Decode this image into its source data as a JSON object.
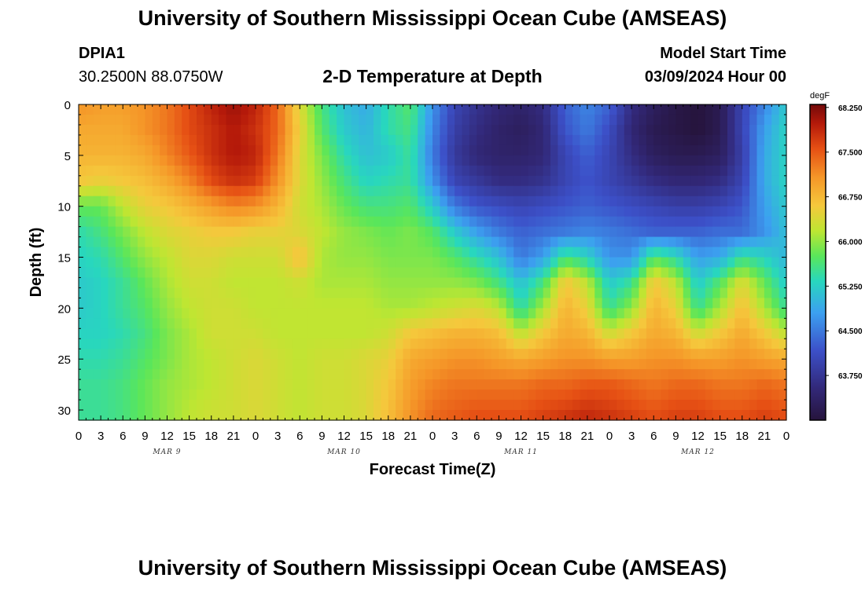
{
  "header": {
    "title": "University of Southern Mississippi Ocean Cube (AMSEAS)",
    "station_id": "DPIA1",
    "coordinates": "30.2500N  88.0750W",
    "model_start_label": "Model Start Time",
    "model_start_value": "03/09/2024 Hour 00"
  },
  "footer": {
    "title": "University of Southern Mississippi Ocean Cube (AMSEAS)"
  },
  "chart_data": {
    "type": "heatmap",
    "title": "2-D Temperature at Depth",
    "xlabel": "Forecast Time(Z)",
    "ylabel": "Depth (ft)",
    "x_hours_range": [
      0,
      96
    ],
    "ylim": [
      0,
      31
    ],
    "y_inverted": true,
    "x_tick_labels": [
      "0",
      "3",
      "6",
      "9",
      "12",
      "15",
      "18",
      "21",
      "0",
      "3",
      "6",
      "9",
      "12",
      "15",
      "18",
      "21",
      "0",
      "3",
      "6",
      "9",
      "12",
      "15",
      "18",
      "21",
      "0",
      "3",
      "6",
      "9",
      "12",
      "15",
      "18",
      "21",
      "0"
    ],
    "y_ticks": [
      0,
      5,
      10,
      15,
      20,
      25,
      30
    ],
    "y_tick_labels": [
      "0",
      "5",
      "10",
      "15",
      "20",
      "25",
      "30"
    ],
    "dates": [
      {
        "label": "MAR 9",
        "hour": 12
      },
      {
        "label": "MAR 10",
        "hour": 36
      },
      {
        "label": "MAR 11",
        "hour": 60
      },
      {
        "label": "MAR 12",
        "hour": 84
      }
    ],
    "colorbar": {
      "unit": "degF",
      "min": 63.0,
      "max": 68.3,
      "labels": [
        "68.250",
        "67.500",
        "66.750",
        "66.000",
        "65.250",
        "64.500",
        "63.750"
      ],
      "values": [
        68.25,
        67.5,
        66.75,
        66.0,
        65.25,
        64.5,
        63.75
      ]
    },
    "depth_levels_ft": [
      0,
      2.5,
      5,
      7.5,
      10,
      12.5,
      15,
      17.5,
      20,
      22.5,
      25,
      27.5,
      31
    ],
    "time_hours": [
      0,
      3,
      6,
      9,
      12,
      15,
      18,
      21,
      24,
      27,
      30,
      33,
      36,
      39,
      42,
      45,
      48,
      51,
      54,
      57,
      60,
      63,
      66,
      69,
      72,
      75,
      78,
      81,
      84,
      87,
      90,
      93,
      96
    ],
    "temperature_degF": [
      [
        67.1,
        67.0,
        67.0,
        67.1,
        67.3,
        67.6,
        67.9,
        68.1,
        67.9,
        67.4,
        66.4,
        65.6,
        65.1,
        64.9,
        65.4,
        65.7,
        64.7,
        64.0,
        63.7,
        63.5,
        63.4,
        63.6,
        64.3,
        64.6,
        64.3,
        63.6,
        63.3,
        63.1,
        63.0,
        63.2,
        64.0,
        64.6,
        65.2
      ],
      [
        66.9,
        66.9,
        66.9,
        67.1,
        67.3,
        67.6,
        67.8,
        68.0,
        67.8,
        67.4,
        66.5,
        65.7,
        65.2,
        65.0,
        65.4,
        65.6,
        64.6,
        63.9,
        63.6,
        63.4,
        63.3,
        63.5,
        64.2,
        64.5,
        64.1,
        63.5,
        63.2,
        63.1,
        63.0,
        63.2,
        64.0,
        64.8,
        65.3
      ],
      [
        66.8,
        66.8,
        66.8,
        66.9,
        67.2,
        67.5,
        67.8,
        68.0,
        67.9,
        67.3,
        66.4,
        65.9,
        65.4,
        65.1,
        65.2,
        65.5,
        64.5,
        63.8,
        63.5,
        63.4,
        63.4,
        63.5,
        64.0,
        64.3,
        64.0,
        63.6,
        63.3,
        63.2,
        63.2,
        63.3,
        63.9,
        64.9,
        65.3
      ],
      [
        66.6,
        66.5,
        66.6,
        66.7,
        66.9,
        67.2,
        67.6,
        67.8,
        67.7,
        67.1,
        66.4,
        66.0,
        65.6,
        65.3,
        65.4,
        65.5,
        64.7,
        64.0,
        63.8,
        63.6,
        63.6,
        63.7,
        64.0,
        64.2,
        64.0,
        63.8,
        63.6,
        63.5,
        63.5,
        63.6,
        64.0,
        64.9,
        65.3
      ],
      [
        65.8,
        65.8,
        66.2,
        66.5,
        66.6,
        66.8,
        67.0,
        67.2,
        67.1,
        66.8,
        66.3,
        66.1,
        65.8,
        65.6,
        65.6,
        65.7,
        65.2,
        64.5,
        64.2,
        64.1,
        64.0,
        64.1,
        64.2,
        64.3,
        64.2,
        64.1,
        64.0,
        63.9,
        63.9,
        64.0,
        64.2,
        64.8,
        65.2
      ],
      [
        65.4,
        65.6,
        65.9,
        66.2,
        66.4,
        66.5,
        66.6,
        66.6,
        66.5,
        66.5,
        66.4,
        66.2,
        66.0,
        65.9,
        65.8,
        65.9,
        65.7,
        65.2,
        64.8,
        64.5,
        64.3,
        64.4,
        64.5,
        64.6,
        64.5,
        64.4,
        64.3,
        64.3,
        64.3,
        64.4,
        64.4,
        64.7,
        65.1
      ],
      [
        65.3,
        65.4,
        65.7,
        66.0,
        66.2,
        66.4,
        66.4,
        66.3,
        66.3,
        66.3,
        66.7,
        66.1,
        66.0,
        66.0,
        65.9,
        65.9,
        65.9,
        65.7,
        65.4,
        65.1,
        64.5,
        64.8,
        65.6,
        65.3,
        64.7,
        64.7,
        65.7,
        65.4,
        64.8,
        64.9,
        65.5,
        65.3,
        65.0
      ],
      [
        65.2,
        65.3,
        65.5,
        65.8,
        66.1,
        66.3,
        66.3,
        66.2,
        66.2,
        66.2,
        66.3,
        66.1,
        66.1,
        66.1,
        66.0,
        66.0,
        66.0,
        66.0,
        65.9,
        65.6,
        65.1,
        65.6,
        66.6,
        66.2,
        65.2,
        65.5,
        66.6,
        66.2,
        65.2,
        65.7,
        66.4,
        65.8,
        65.2
      ],
      [
        65.2,
        65.3,
        65.5,
        65.7,
        66.0,
        66.2,
        66.3,
        66.3,
        66.2,
        66.2,
        66.2,
        66.2,
        66.2,
        66.2,
        66.1,
        66.1,
        66.2,
        66.3,
        66.4,
        66.2,
        65.4,
        66.1,
        66.8,
        66.5,
        65.5,
        66.0,
        66.8,
        66.5,
        65.5,
        66.1,
        66.7,
        66.1,
        65.5
      ],
      [
        65.3,
        65.3,
        65.4,
        65.6,
        65.9,
        66.1,
        66.3,
        66.3,
        66.3,
        66.2,
        66.2,
        66.2,
        66.2,
        66.2,
        66.3,
        66.6,
        66.7,
        66.8,
        66.8,
        66.7,
        66.2,
        66.6,
        66.9,
        66.8,
        66.3,
        66.6,
        66.9,
        66.8,
        66.3,
        66.6,
        66.9,
        66.6,
        66.2
      ],
      [
        65.4,
        65.4,
        65.5,
        65.7,
        65.9,
        66.1,
        66.2,
        66.3,
        66.4,
        66.3,
        66.2,
        66.3,
        66.3,
        66.4,
        66.5,
        66.9,
        67.0,
        67.1,
        67.1,
        67.0,
        66.9,
        67.0,
        67.1,
        67.1,
        67.0,
        67.0,
        67.1,
        67.1,
        67.0,
        67.0,
        67.1,
        67.0,
        66.9
      ],
      [
        65.5,
        65.5,
        65.6,
        65.8,
        66.0,
        66.1,
        66.2,
        66.3,
        66.4,
        66.3,
        66.2,
        66.3,
        66.3,
        66.4,
        66.6,
        67.0,
        67.2,
        67.3,
        67.3,
        67.3,
        67.3,
        67.4,
        67.4,
        67.5,
        67.5,
        67.4,
        67.3,
        67.4,
        67.4,
        67.3,
        67.3,
        67.4,
        67.3
      ],
      [
        65.5,
        65.5,
        65.6,
        65.8,
        66.0,
        66.2,
        66.3,
        66.3,
        66.4,
        66.3,
        66.2,
        66.3,
        66.3,
        66.4,
        66.7,
        67.1,
        67.4,
        67.5,
        67.6,
        67.6,
        67.6,
        67.7,
        67.8,
        67.9,
        67.8,
        67.7,
        67.6,
        67.7,
        67.7,
        67.6,
        67.6,
        67.7,
        67.6
      ]
    ]
  }
}
